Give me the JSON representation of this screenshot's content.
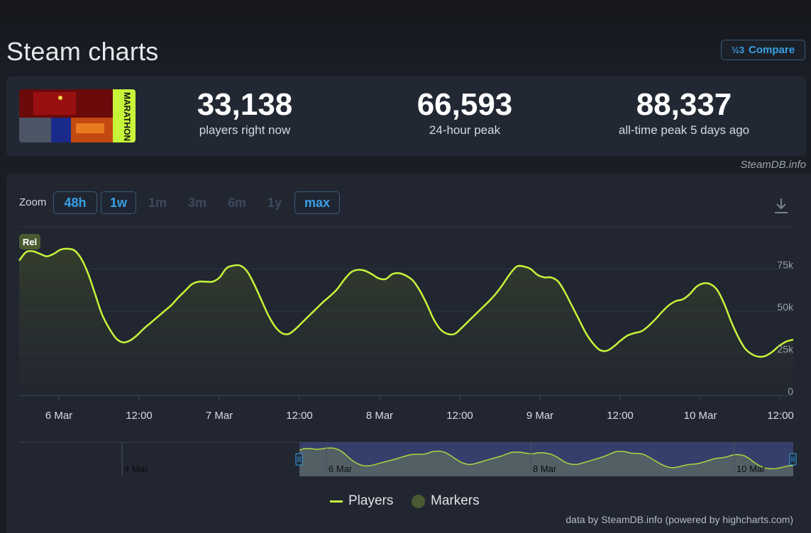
{
  "page": {
    "title": "Steam charts",
    "compare_label": "Compare",
    "compare_icon": "½3"
  },
  "stats": [
    {
      "value": "33,138",
      "label": "players right now"
    },
    {
      "value": "66,593",
      "label": "24-hour peak"
    },
    {
      "value": "88,337",
      "label": "all-time peak 5 days ago"
    }
  ],
  "capsule_title": "MARATHON",
  "credit": "SteamDB.info",
  "zoom": {
    "label": "Zoom",
    "options": [
      "48h",
      "1w",
      "1m",
      "3m",
      "6m",
      "1y",
      "max"
    ],
    "active": [
      "48h",
      "1w",
      "max"
    ]
  },
  "chart_data": {
    "type": "area",
    "series": [
      {
        "name": "Players",
        "color": "#c6f53a"
      }
    ],
    "x_tick_labels": [
      "6 Mar",
      "12:00",
      "7 Mar",
      "12:00",
      "8 Mar",
      "12:00",
      "9 Mar",
      "12:00",
      "10 Mar",
      "12:00"
    ],
    "y_tick_labels": [
      "0",
      "25k",
      "50k",
      "75k"
    ],
    "ylim": [
      0,
      100000
    ],
    "x_unit": "hours from start of visible range (approx. 5 Mar 18:00)",
    "points": [
      [
        0,
        80000
      ],
      [
        1,
        85000
      ],
      [
        2,
        85500
      ],
      [
        3,
        84000
      ],
      [
        4,
        82500
      ],
      [
        5,
        84000
      ],
      [
        6,
        86500
      ],
      [
        7,
        87000
      ],
      [
        8,
        86000
      ],
      [
        9,
        81000
      ],
      [
        10,
        72000
      ],
      [
        11,
        60000
      ],
      [
        12,
        48000
      ],
      [
        13,
        40000
      ],
      [
        14,
        34000
      ],
      [
        15,
        31500
      ],
      [
        16,
        32500
      ],
      [
        17,
        35500
      ],
      [
        18,
        39500
      ],
      [
        19,
        43000
      ],
      [
        20,
        46500
      ],
      [
        21,
        50000
      ],
      [
        22,
        53500
      ],
      [
        23,
        58000
      ],
      [
        24,
        62000
      ],
      [
        25,
        66000
      ],
      [
        26,
        67500
      ],
      [
        27,
        67500
      ],
      [
        28,
        67500
      ],
      [
        29,
        70000
      ],
      [
        30,
        75500
      ],
      [
        31,
        77000
      ],
      [
        32,
        77000
      ],
      [
        33,
        73500
      ],
      [
        34,
        66000
      ],
      [
        35,
        57000
      ],
      [
        36,
        48000
      ],
      [
        37,
        41000
      ],
      [
        38,
        37000
      ],
      [
        39,
        36500
      ],
      [
        40,
        39500
      ],
      [
        41,
        43500
      ],
      [
        42,
        47500
      ],
      [
        43,
        51500
      ],
      [
        44,
        55500
      ],
      [
        45,
        59000
      ],
      [
        46,
        63000
      ],
      [
        47,
        68500
      ],
      [
        48,
        73000
      ],
      [
        49,
        74500
      ],
      [
        50,
        74000
      ],
      [
        51,
        72000
      ],
      [
        52,
        69500
      ],
      [
        53,
        69000
      ],
      [
        54,
        72000
      ],
      [
        55,
        72500
      ],
      [
        56,
        71000
      ],
      [
        57,
        68000
      ],
      [
        58,
        62000
      ],
      [
        59,
        54000
      ],
      [
        60,
        45000
      ],
      [
        61,
        39000
      ],
      [
        62,
        36500
      ],
      [
        63,
        36500
      ],
      [
        64,
        40000
      ],
      [
        65,
        44000
      ],
      [
        66,
        48000
      ],
      [
        67,
        52000
      ],
      [
        68,
        56000
      ],
      [
        69,
        60500
      ],
      [
        70,
        66000
      ],
      [
        71,
        72000
      ],
      [
        72,
        76500
      ],
      [
        73,
        76500
      ],
      [
        74,
        75000
      ],
      [
        75,
        71500
      ],
      [
        76,
        70000
      ],
      [
        77,
        70000
      ],
      [
        78,
        67500
      ],
      [
        79,
        61000
      ],
      [
        80,
        53000
      ],
      [
        81,
        45000
      ],
      [
        82,
        37000
      ],
      [
        83,
        31000
      ],
      [
        84,
        27000
      ],
      [
        85,
        26500
      ],
      [
        86,
        29000
      ],
      [
        87,
        32500
      ],
      [
        88,
        35500
      ],
      [
        89,
        37000
      ],
      [
        90,
        38000
      ],
      [
        91,
        41000
      ],
      [
        92,
        45000
      ],
      [
        93,
        49500
      ],
      [
        94,
        53500
      ],
      [
        95,
        56000
      ],
      [
        96,
        57000
      ],
      [
        97,
        60000
      ],
      [
        98,
        64500
      ],
      [
        99,
        66500
      ],
      [
        100,
        66000
      ],
      [
        101,
        62500
      ],
      [
        102,
        54500
      ],
      [
        103,
        44000
      ],
      [
        104,
        35000
      ],
      [
        105,
        28000
      ],
      [
        106,
        24500
      ],
      [
        107,
        23000
      ],
      [
        108,
        23500
      ],
      [
        109,
        26000
      ],
      [
        110,
        29500
      ],
      [
        111,
        32000
      ],
      [
        112,
        33138
      ]
    ],
    "release_marker": "Rel",
    "navigator_labels": [
      "4 Mar",
      "6 Mar",
      "8 Mar",
      "10 Mar"
    ],
    "legend": [
      {
        "label": "Players",
        "color": "#c6f53a"
      },
      {
        "label": "Markers",
        "color": "#4b5a32"
      }
    ],
    "footer": "data by SteamDB.info (powered by highcharts.com)"
  }
}
